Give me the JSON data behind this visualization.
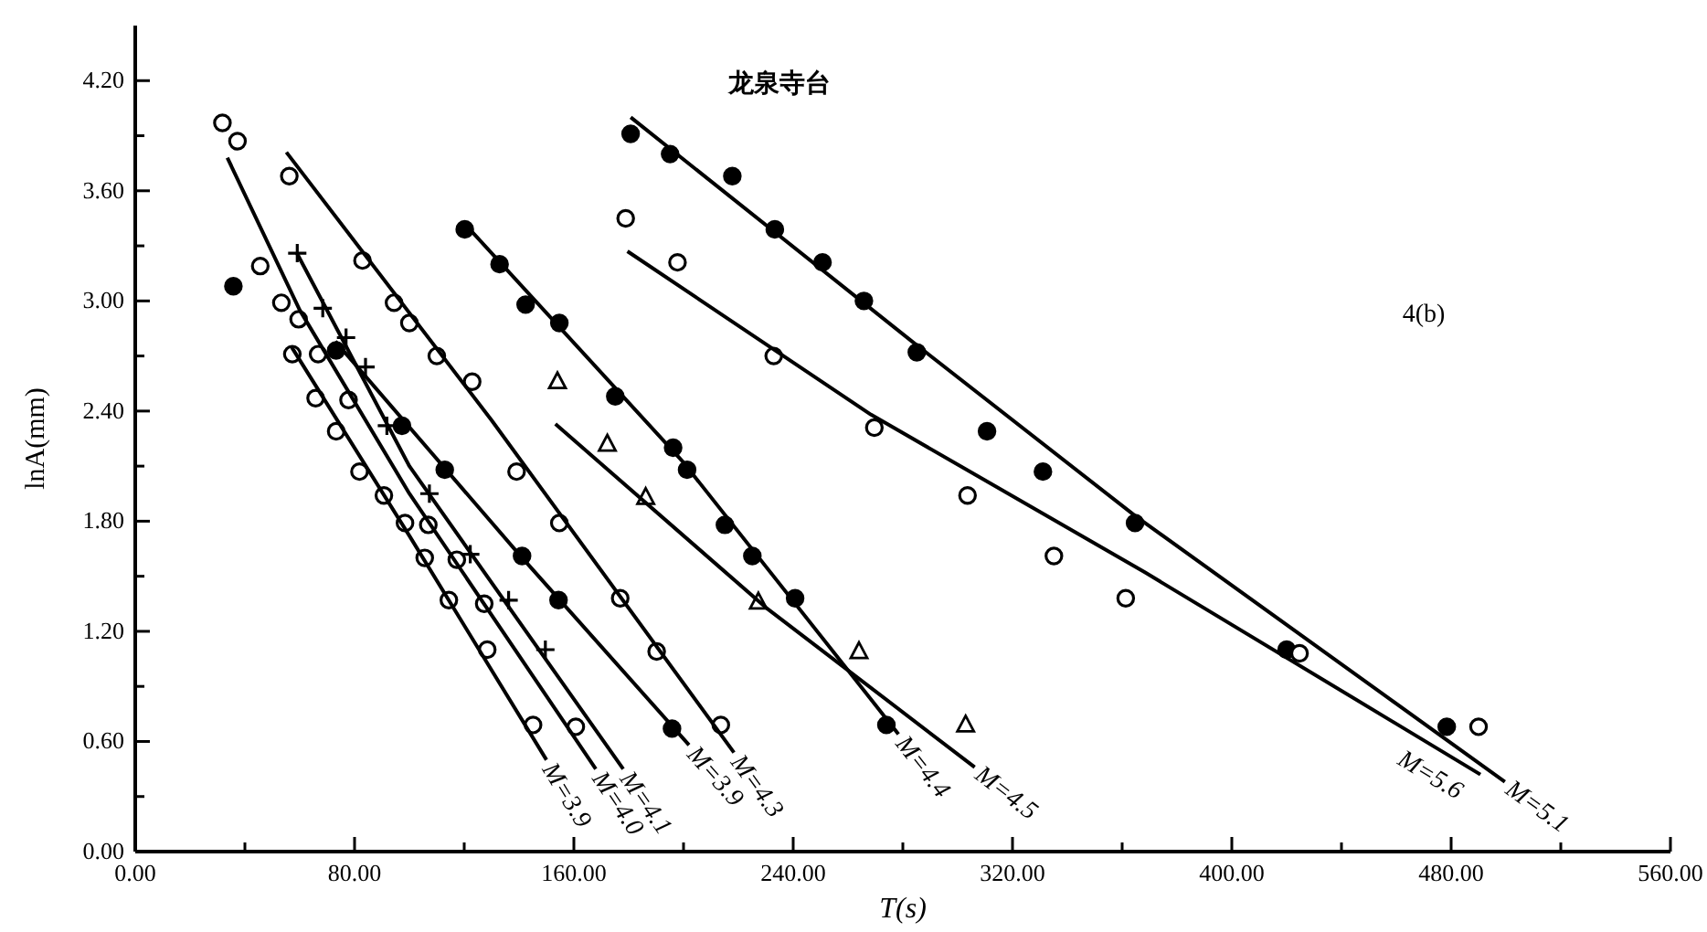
{
  "chart_data": {
    "type": "scatter",
    "title": "龙泉寺台",
    "xlabel": "T(s)",
    "ylabel": "lnA(mm)",
    "annotations": [
      "4(b)"
    ],
    "xlim": [
      0,
      560
    ],
    "ylim": [
      0,
      4.5
    ],
    "xticks": [
      {
        "value": 0,
        "label": "0.00"
      },
      {
        "value": 40,
        "label": null
      },
      {
        "value": 80,
        "label": "80.00"
      },
      {
        "value": 120,
        "label": null
      },
      {
        "value": 160,
        "label": "160.00"
      },
      {
        "value": 200,
        "label": null
      },
      {
        "value": 240,
        "label": "240.00"
      },
      {
        "value": 280,
        "label": null
      },
      {
        "value": 320,
        "label": "320.00"
      },
      {
        "value": 360,
        "label": null
      },
      {
        "value": 400,
        "label": "400.00"
      },
      {
        "value": 440,
        "label": null
      },
      {
        "value": 480,
        "label": "480.00"
      },
      {
        "value": 520,
        "label": null
      },
      {
        "value": 560,
        "label": "560.00"
      }
    ],
    "yticks": [
      {
        "value": 0,
        "label": "0.00"
      },
      {
        "value": 0.3,
        "label": null
      },
      {
        "value": 0.6,
        "label": "0.60"
      },
      {
        "value": 0.9,
        "label": null
      },
      {
        "value": 1.2,
        "label": "1.20"
      },
      {
        "value": 1.5,
        "label": null
      },
      {
        "value": 1.8,
        "label": "1.80"
      },
      {
        "value": 2.1,
        "label": null
      },
      {
        "value": 2.4,
        "label": "2.40"
      },
      {
        "value": 2.7,
        "label": null
      },
      {
        "value": 3.0,
        "label": "3.00"
      },
      {
        "value": 3.3,
        "label": null
      },
      {
        "value": 3.6,
        "label": "3.60"
      },
      {
        "value": 3.9,
        "label": null
      },
      {
        "value": 4.2,
        "label": "4.20"
      }
    ],
    "grid": false,
    "legend": false,
    "series": [
      {
        "marker": "circle",
        "color": "#ffffff",
        "x": [
          31.8,
          37.3,
          45.6,
          53.3,
          57.3,
          65.8,
          73.3,
          81.8,
          90.7,
          98.4,
          105.6,
          114.4,
          128.4,
          145.1
        ],
        "values": [
          3.97,
          3.87,
          3.19,
          2.99,
          2.71,
          2.47,
          2.29,
          2.07,
          1.94,
          1.79,
          1.6,
          1.37,
          1.1,
          0.69
        ]
      },
      {
        "marker": "circle",
        "color": "#ffffff",
        "x": [
          59.6,
          66.7,
          77.8,
          106.9,
          117.3,
          127.3,
          160.7
        ],
        "values": [
          2.9,
          2.71,
          2.46,
          1.78,
          1.59,
          1.35,
          0.68
        ]
      },
      {
        "marker": "cross",
        "color": "#000000",
        "x": [
          59.1,
          68.4,
          76.9,
          84,
          91.8,
          107.3,
          122.2,
          136.2,
          149.6
        ],
        "values": [
          3.26,
          2.96,
          2.8,
          2.64,
          2.32,
          1.95,
          1.62,
          1.37,
          1.1
        ]
      },
      {
        "marker": "circle",
        "color": "#000000",
        "x": [
          35.8
        ],
        "values": [
          3.08
        ]
      },
      {
        "marker": "circle",
        "color": "#000000",
        "x": [
          73.3,
          97.3,
          112.9,
          141.1,
          154.4,
          195.8
        ],
        "values": [
          2.73,
          2.32,
          2.08,
          1.61,
          1.37,
          0.67
        ]
      },
      {
        "marker": "circle",
        "color": "#ffffff",
        "x": [
          56.2,
          82.9,
          94.4,
          100,
          110,
          122.9,
          139.1,
          154.7,
          176.9,
          190.2,
          213.6
        ],
        "values": [
          3.68,
          3.22,
          2.99,
          2.88,
          2.7,
          2.56,
          2.07,
          1.79,
          1.38,
          1.09,
          0.69
        ]
      },
      {
        "marker": "circle",
        "color": "#000000",
        "x": [
          120.2,
          132.9,
          142.4,
          154.7,
          175.1,
          196.2,
          201.3,
          215.1,
          225.1,
          240.7,
          274
        ],
        "values": [
          3.39,
          3.2,
          2.98,
          2.88,
          2.48,
          2.2,
          2.08,
          1.78,
          1.61,
          1.38,
          0.69
        ]
      },
      {
        "marker": "triangle",
        "color": "#ffffff",
        "x": [
          154,
          172.2,
          186.2,
          227.3,
          264,
          302.9
        ],
        "values": [
          2.56,
          2.22,
          1.93,
          1.36,
          1.09,
          0.69
        ]
      },
      {
        "marker": "circle",
        "color": "#000000",
        "x": [
          180.7,
          195.1,
          217.8,
          233.3,
          250.7,
          265.8,
          285.1,
          310.7,
          331.1,
          364.7,
          420,
          478.4
        ],
        "values": [
          3.91,
          3.8,
          3.68,
          3.39,
          3.21,
          3.0,
          2.72,
          2.29,
          2.07,
          1.79,
          1.1,
          0.68
        ]
      },
      {
        "marker": "circle",
        "color": "#ffffff",
        "x": [
          178.9,
          197.8,
          232.9,
          269.6,
          303.6,
          335.1,
          361.3,
          424.7,
          490
        ],
        "values": [
          3.45,
          3.21,
          2.7,
          2.31,
          1.94,
          1.61,
          1.38,
          1.08,
          0.68
        ]
      },
      {
        "type": "line",
        "name": "M=3.9",
        "color": "#000000",
        "x": [
          57,
          100,
          150
        ],
        "values": [
          2.75,
          1.72,
          0.5
        ]
      },
      {
        "type": "line",
        "name": "M=4.0",
        "color": "#000000",
        "x": [
          33.6,
          60,
          100,
          168
        ],
        "values": [
          3.78,
          2.95,
          1.95,
          0.45
        ]
      },
      {
        "type": "line",
        "name": "M=4.1",
        "color": "#000000",
        "x": [
          59,
          100,
          178
        ],
        "values": [
          3.26,
          2.1,
          0.45
        ]
      },
      {
        "type": "line",
        "name": "M=3.9",
        "color": "#000000",
        "x": [
          73,
          140,
          202
        ],
        "values": [
          2.78,
          1.62,
          0.58
        ]
      },
      {
        "type": "line",
        "name": "M=4.3",
        "color": "#000000",
        "x": [
          55.1,
          130,
          218.4
        ],
        "values": [
          3.81,
          2.35,
          0.54
        ]
      },
      {
        "type": "line",
        "name": "M=4.4",
        "color": "#000000",
        "x": [
          120.2,
          200,
          278.4
        ],
        "values": [
          3.42,
          2.12,
          0.64
        ]
      },
      {
        "type": "line",
        "name": "M=4.5",
        "color": "#000000",
        "x": [
          153.3,
          230,
          306.2
        ],
        "values": [
          2.33,
          1.33,
          0.46
        ]
      },
      {
        "type": "line",
        "name": "M=5.1",
        "color": "#000000",
        "x": [
          180.7,
          285,
          364.7,
          499.6
        ],
        "values": [
          4.0,
          2.76,
          1.83,
          0.38
        ]
      },
      {
        "type": "line",
        "name": "M=5.6",
        "color": "#000000",
        "x": [
          179.5,
          268.4,
          368.4,
          490.7
        ],
        "values": [
          3.27,
          2.38,
          1.52,
          0.42
        ]
      }
    ]
  }
}
